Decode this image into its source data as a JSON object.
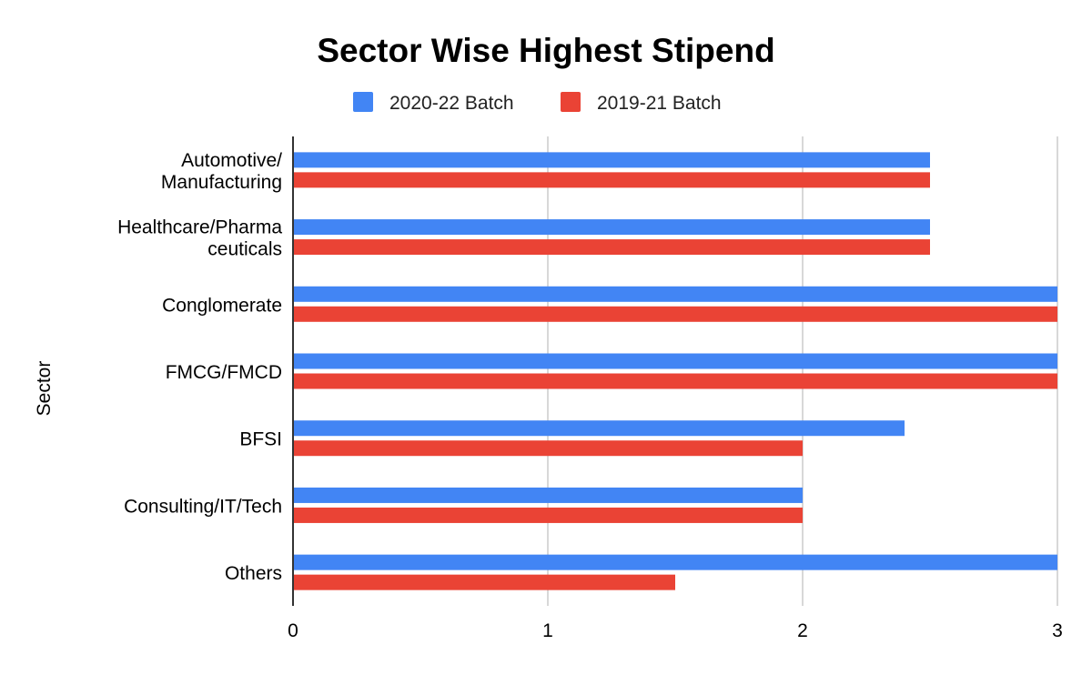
{
  "chart_data": {
    "type": "bar",
    "orientation": "horizontal",
    "title": "Sector Wise Highest Stipend",
    "xlabel": "",
    "ylabel": "Sector",
    "xlim": [
      0,
      3
    ],
    "xticks": [
      "0",
      "1",
      "2",
      "3"
    ],
    "grid": true,
    "legend_position": "top",
    "categories": [
      [
        "Automotive/",
        "Manufacturing"
      ],
      [
        "Healthcare/Pharma",
        "ceuticals"
      ],
      [
        "Conglomerate"
      ],
      [
        "FMCG/FMCD"
      ],
      [
        "BFSI"
      ],
      [
        "Consulting/IT/Tech"
      ],
      [
        "Others"
      ]
    ],
    "series": [
      {
        "name": "2020-22 Batch",
        "color": "#4285f4",
        "values": [
          2.5,
          2.5,
          3,
          3,
          2.4,
          2,
          3
        ]
      },
      {
        "name": "2019-21 Batch",
        "color": "#ea4335",
        "values": [
          2.5,
          2.5,
          3,
          3,
          2,
          2,
          1.5
        ]
      }
    ]
  }
}
